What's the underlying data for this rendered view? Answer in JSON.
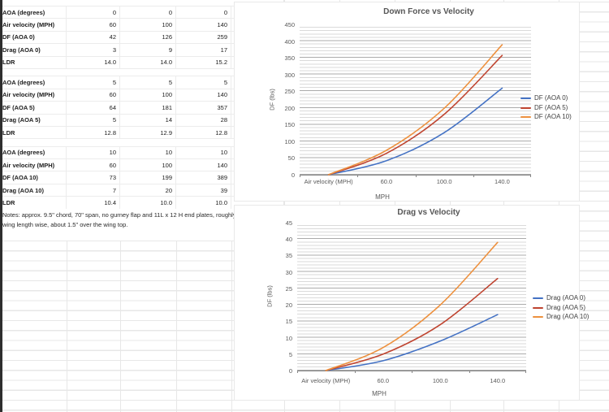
{
  "sheet": {
    "table_blocks": [
      {
        "rows": [
          {
            "label": "AOA (degrees)",
            "values": [
              "0",
              "0",
              "0"
            ]
          },
          {
            "label": "Air velocity (MPH)",
            "values": [
              "60",
              "100",
              "140"
            ]
          },
          {
            "label": "DF (AOA 0)",
            "values": [
              "42",
              "126",
              "259"
            ]
          },
          {
            "label": "Drag (AOA 0)",
            "values": [
              "3",
              "9",
              "17"
            ]
          },
          {
            "label": "LDR",
            "values": [
              "14.0",
              "14.0",
              "15.2"
            ]
          }
        ]
      },
      {
        "rows": [
          {
            "label": "AOA (degrees)",
            "values": [
              "5",
              "5",
              "5"
            ]
          },
          {
            "label": "Air velocity (MPH)",
            "values": [
              "60",
              "100",
              "140"
            ]
          },
          {
            "label": "DF (AOA 5)",
            "values": [
              "64",
              "181",
              "357"
            ]
          },
          {
            "label": "Drag (AOA 5)",
            "values": [
              "5",
              "14",
              "28"
            ]
          },
          {
            "label": "LDR",
            "values": [
              "12.8",
              "12.9",
              "12.8"
            ]
          }
        ]
      },
      {
        "rows": [
          {
            "label": "AOA (degrees)",
            "values": [
              "10",
              "10",
              "10"
            ]
          },
          {
            "label": "Air velocity (MPH)",
            "values": [
              "60",
              "100",
              "140"
            ]
          },
          {
            "label": "DF (AOA 10)",
            "values": [
              "73",
              "199",
              "389"
            ]
          },
          {
            "label": "Drag (AOA 10)",
            "values": [
              "7",
              "20",
              "39"
            ]
          },
          {
            "label": "LDR",
            "values": [
              "10.4",
              "10.0",
              "10.0"
            ]
          }
        ]
      }
    ],
    "notes": "Notes: approx. 9.5\" chord, 70\" span, no gurney flap and 11L x 12 H end plates, roughly centered on the wing length wise, about 1.5\" over the wing top."
  },
  "chart_data": [
    {
      "type": "line",
      "title": "Down Force vs Velocity",
      "categories": [
        "Air velocity (MPH)",
        "60.0",
        "100.0",
        "140.0"
      ],
      "series": [
        {
          "name": "DF (AOA 0)",
          "values": [
            0,
            42,
            126,
            259
          ],
          "color": "#4472C4"
        },
        {
          "name": "DF (AOA 5)",
          "values": [
            0,
            64,
            181,
            357
          ],
          "color": "#BF4430"
        },
        {
          "name": "DF (AOA 10)",
          "values": [
            0,
            73,
            199,
            389
          ],
          "color": "#ED913F"
        }
      ],
      "xlabel": "MPH",
      "ylabel": "DF (lbs)",
      "ylim": [
        0,
        450
      ],
      "ytick_step": 50,
      "yminor_step": 10,
      "grid": "horizontal-major-minor",
      "legend_position": "right",
      "smooth": true
    },
    {
      "type": "line",
      "title": "Drag vs Velocity",
      "categories": [
        "Air velocity (MPH)",
        "60.0",
        "100.0",
        "140.0"
      ],
      "series": [
        {
          "name": "Drag (AOA 0)",
          "values": [
            0,
            3,
            9,
            17
          ],
          "color": "#4472C4"
        },
        {
          "name": "Drag (AOA 5)",
          "values": [
            0,
            5,
            14,
            28
          ],
          "color": "#BF4430"
        },
        {
          "name": "Drag (AOA 10)",
          "values": [
            0,
            7,
            20,
            39
          ],
          "color": "#ED913F"
        }
      ],
      "xlabel": "MPH",
      "ylabel": "DF (lbs)",
      "ylim": [
        0,
        45
      ],
      "ytick_step": 5,
      "yminor_step": 1,
      "grid": "horizontal-major-minor",
      "legend_position": "right",
      "smooth": true
    }
  ]
}
